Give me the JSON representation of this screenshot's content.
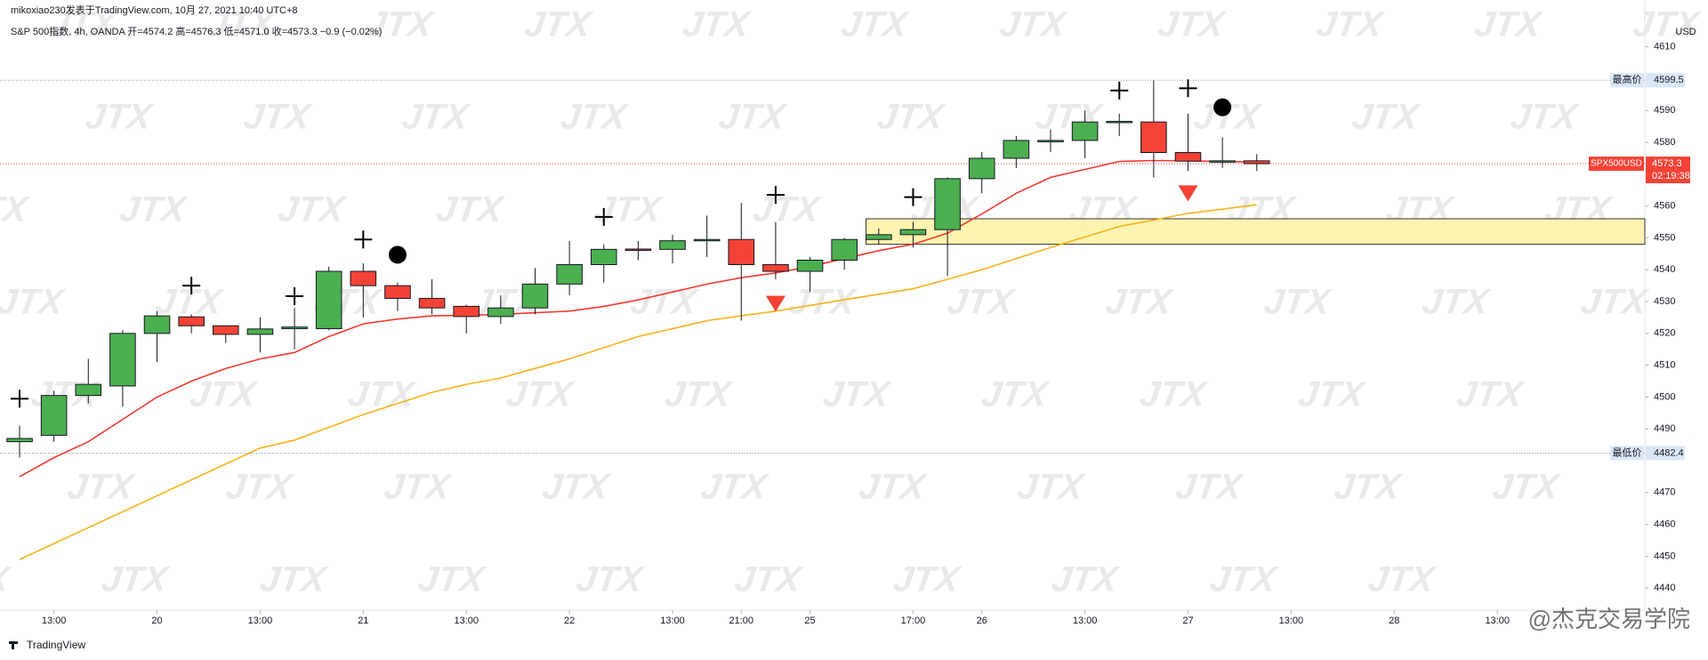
{
  "chart_data": {
    "type": "candlestick",
    "author_line": "mikoxiao230发表于TradingView.com, 10月 27, 2021 10:40 UTC+8",
    "legend_line": "S&P 500指数, 4h, OANDA  开=4574.2  高=4576.3  低=4571.0  收=4573.3  −0.9 (−0.02%)",
    "currency": "USD",
    "brand": "TradingView",
    "watermark": "JTX",
    "footer_watermark": "@杰克交易学院",
    "categories": [
      null,
      "13:00",
      null,
      null,
      "20",
      null,
      null,
      "13:00",
      null,
      null,
      "21",
      null,
      null,
      "13:00",
      null,
      null,
      "22",
      null,
      null,
      "13:00",
      null,
      "21:00",
      null,
      "25",
      null,
      null,
      "17:00",
      null,
      "26",
      null,
      null,
      "13:00",
      null,
      null,
      "27",
      null,
      null,
      "13:00",
      null,
      null,
      "28",
      null,
      null,
      "13:00"
    ],
    "open": [
      4486,
      4488,
      4500.5,
      4503.5,
      4520,
      4525.2,
      4522.4,
      4519.7,
      4521.5,
      4521.5,
      4539.5,
      4535,
      4531,
      4528.5,
      4525.3,
      4528,
      4535.5,
      4541.6,
      4546.5,
      4546.4,
      4549.2,
      4549.5,
      4541.6,
      4539.5,
      4543,
      4549.5,
      4551,
      4552.6,
      4568.6,
      4575,
      4580.3,
      4580.6,
      4586.4,
      4586.4,
      4576.8,
      4574.1,
      4574.2,
      null,
      null,
      null,
      null,
      null,
      null,
      null
    ],
    "high": [
      4491,
      4502,
      4512,
      4521,
      4527,
      4526,
      4521,
      4525,
      4528,
      4541,
      4542,
      4536,
      4537,
      4529,
      4532,
      4540.5,
      4549,
      4548,
      4549,
      4551,
      4557,
      4561,
      4555,
      4544,
      4550,
      4553,
      4555,
      4569,
      4577,
      4582,
      4584,
      4590,
      4589,
      4599.5,
      4589,
      4581.6,
      4576.3,
      null,
      null,
      null,
      null,
      null,
      null,
      null
    ],
    "low": [
      4481,
      4486,
      4498,
      4497,
      4511,
      4520,
      4517,
      4514,
      4515,
      4521,
      4525,
      4527,
      4526,
      4520,
      4523,
      4526,
      4532,
      4536,
      4543,
      4542,
      4544,
      4524,
      4537,
      4533,
      4540,
      4548,
      4547,
      4538,
      4564,
      4572,
      4577,
      4575,
      4582,
      4569,
      4571,
      4572,
      4571.0,
      null,
      null,
      null,
      null,
      null,
      null,
      null
    ],
    "close": [
      4487,
      4500.5,
      4504,
      4520,
      4525.5,
      4522.4,
      4519.7,
      4521.4,
      4522,
      4539.5,
      4535,
      4531,
      4528,
      4525.3,
      4528,
      4535.5,
      4541.6,
      4546.4,
      4546.2,
      4549.1,
      4549.5,
      4541.6,
      4539.5,
      4543,
      4549.5,
      4551,
      4552.6,
      4568.6,
      4575,
      4580.6,
      4580.6,
      4586.4,
      4586.6,
      4576.8,
      4574.1,
      4574.2,
      4573.3,
      null,
      null,
      null,
      null,
      null,
      null,
      null
    ],
    "up_color": "#4caf50",
    "down_color": "#f44336",
    "series": [
      {
        "color": "#f23a2f",
        "values": [
          4475,
          4481,
          4486,
          4493,
          4500,
          4505,
          4509,
          4512,
          4514,
          4519,
          4523,
          4524.5,
          4525.5,
          4525.7,
          4526,
          4526.5,
          4527,
          4528.5,
          4530.5,
          4533,
          4535.5,
          4537.5,
          4539,
          4541,
          4543.5,
          4546,
          4548,
          4551.5,
          4557.5,
          4564,
          4569,
          4571.5,
          4574,
          4574.3,
          4574.2,
          4574,
          4573.8,
          null,
          null,
          null,
          null,
          null,
          null,
          null
        ]
      },
      {
        "color": "#f5b21a",
        "values": [
          4449,
          4454,
          4459,
          4464,
          4469,
          4474,
          4479,
          4484,
          4486.5,
          4490.5,
          4494.5,
          4498,
          4501.5,
          4504,
          4506,
          4509,
          4512,
          4515.5,
          4519,
          4521.5,
          4524,
          4525.5,
          4527,
          4528.8,
          4530.6,
          4532.3,
          4534,
          4537,
          4540,
          4543.5,
          4547,
          4550.3,
          4553.6,
          4555.6,
          4557.7,
          4559,
          4560.4,
          null,
          null,
          null,
          null,
          null,
          null,
          null
        ]
      }
    ],
    "cross_markers": [
      4499.5,
      null,
      null,
      null,
      null,
      4535,
      null,
      null,
      4531.7,
      null,
      4549.5,
      null,
      null,
      null,
      null,
      null,
      null,
      4556.6,
      null,
      null,
      null,
      null,
      4563.5,
      null,
      null,
      null,
      4562.8,
      null,
      null,
      null,
      null,
      null,
      4596.3,
      null,
      4597,
      null,
      null,
      null,
      null,
      null,
      null,
      null,
      null,
      null
    ],
    "dot_markers": [
      null,
      null,
      null,
      null,
      null,
      null,
      null,
      null,
      null,
      null,
      null,
      4544.7,
      null,
      null,
      null,
      null,
      null,
      null,
      null,
      null,
      null,
      null,
      null,
      null,
      null,
      null,
      null,
      null,
      null,
      null,
      null,
      null,
      null,
      null,
      null,
      4591,
      null,
      null,
      null,
      null,
      null,
      null,
      null,
      null
    ],
    "triangle_markers": [
      null,
      null,
      null,
      null,
      null,
      null,
      null,
      null,
      null,
      null,
      null,
      null,
      null,
      null,
      null,
      null,
      null,
      null,
      null,
      null,
      null,
      null,
      4529.3,
      null,
      null,
      null,
      null,
      null,
      null,
      null,
      null,
      null,
      null,
      null,
      4564,
      null,
      null,
      null,
      null,
      null,
      null,
      null,
      null,
      null
    ],
    "zone": {
      "low": 4548,
      "high": 4556,
      "start": 25,
      "color": "#fff3b0"
    },
    "high_line": {
      "label": "最高价",
      "value": 4599.5
    },
    "low_line": {
      "label": "最低价",
      "value": 4482.4
    },
    "last_price": {
      "symbol": "SPX500USD",
      "value": 4573.3,
      "countdown": "02:19:38"
    },
    "ylim": [
      4436,
      4618
    ],
    "yticks": [
      4610,
      4590,
      4580,
      4560,
      4550,
      4540,
      4530,
      4520,
      4510,
      4500,
      4490,
      4470,
      4460,
      4450,
      4440
    ]
  }
}
